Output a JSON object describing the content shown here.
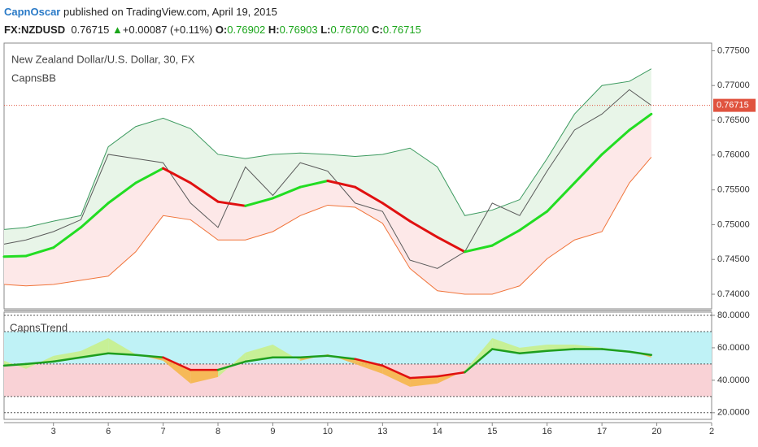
{
  "header": {
    "author": "CapnOscar",
    "published": "published on TradingView.com, April 19, 2015",
    "symbol": "FX:NZDUSD",
    "price": "0.76715",
    "arrow": "▲",
    "change": "+0.00087 (+0.11%)",
    "open_label": "O:",
    "open": "0.76902",
    "high_label": "H:",
    "high": "0.76903",
    "low_label": "L:",
    "low": "0.76700",
    "close_label": "C:",
    "close": "0.76715"
  },
  "chart_data": [
    {
      "type": "line",
      "title": "New Zealand Dollar/U.S. Dollar, 30, FX",
      "indicator": "CapnsBB",
      "x": [
        -0.9,
        -0.5,
        0,
        0.5,
        1,
        1.5,
        2,
        2.5,
        3,
        3.5,
        4,
        4.5,
        5,
        5.5,
        6,
        6.5,
        7,
        7.5,
        8,
        8.5,
        9,
        9.5,
        10,
        10.5,
        10.9
      ],
      "xlim": [
        -0.9,
        12
      ],
      "ylim": [
        0.7379,
        0.7761
      ],
      "yticks": [
        {
          "value": 0.74,
          "label": "0.74000"
        },
        {
          "value": 0.745,
          "label": "0.74500"
        },
        {
          "value": 0.75,
          "label": "0.75000"
        },
        {
          "value": 0.755,
          "label": "0.75500"
        },
        {
          "value": 0.76,
          "label": "0.76000"
        },
        {
          "value": 0.765,
          "label": "0.76500"
        },
        {
          "value": 0.77,
          "label": "0.77000"
        },
        {
          "value": 0.775,
          "label": "0.77500"
        }
      ],
      "upper_fill": "#e8f5e8",
      "lower_fill": "#fde8e8",
      "up_color": "#22dd22",
      "down_color": "#e01010",
      "series": [
        {
          "color": "#3c9a5f",
          "values": [
            0.7493,
            0.7496,
            0.7505,
            0.7513,
            0.7612,
            0.7641,
            0.7653,
            0.7638,
            0.7601,
            0.7595,
            0.7601,
            0.7603,
            0.7601,
            0.7598,
            0.7601,
            0.761,
            0.7583,
            0.7513,
            0.7521,
            0.7536,
            0.7595,
            0.7659,
            0.77,
            0.7706,
            0.7724
          ]
        },
        {
          "values": [
            0.7454,
            0.7455,
            0.7467,
            0.7496,
            0.7531,
            0.756,
            0.7581,
            0.756,
            0.7533,
            0.7527,
            0.7538,
            0.7554,
            0.7563,
            0.7554,
            0.7531,
            0.7505,
            0.7482,
            0.7461,
            0.747,
            0.7492,
            0.7519,
            0.756,
            0.7601,
            0.7636,
            0.7659
          ]
        },
        {
          "color": "#f0743a",
          "values": [
            0.7414,
            0.7412,
            0.7414,
            0.742,
            0.7426,
            0.7461,
            0.7513,
            0.7507,
            0.7478,
            0.7478,
            0.749,
            0.7513,
            0.7528,
            0.7525,
            0.7502,
            0.7437,
            0.7405,
            0.74,
            0.74,
            0.7412,
            0.7451,
            0.7478,
            0.749,
            0.756,
            0.7597
          ]
        },
        {
          "color": "#5a5a5a",
          "values": [
            0.7472,
            0.7478,
            0.749,
            0.7507,
            0.7601,
            0.7595,
            0.7589,
            0.7531,
            0.7496,
            0.7583,
            0.7542,
            0.7589,
            0.7577,
            0.7531,
            0.7519,
            0.7449,
            0.7437,
            0.7461,
            0.7531,
            0.7513,
            0.7577,
            0.7636,
            0.7659,
            0.7694,
            0.76715
          ]
        }
      ],
      "last": {
        "value": 0.76715,
        "label": "0.76715",
        "color": "#e0533f"
      }
    },
    {
      "type": "line",
      "indicator": "CapnsTrend",
      "x": [
        -0.9,
        -0.5,
        0,
        0.5,
        1,
        1.5,
        2,
        2.5,
        3,
        3.5,
        4,
        4.5,
        5,
        5.5,
        6,
        6.5,
        7,
        7.5,
        8,
        8.5,
        9,
        9.5,
        10,
        10.5,
        10.9
      ],
      "xlim": [
        -0.9,
        12
      ],
      "ylim": [
        15.9,
        82
      ],
      "yticks": [
        {
          "value": 20,
          "label": "20.0000"
        },
        {
          "value": 40,
          "label": "40.0000"
        },
        {
          "value": 60,
          "label": "60.0000"
        },
        {
          "value": 80,
          "label": "80.0000"
        }
      ],
      "xticks": [
        {
          "value": 0,
          "label": "3"
        },
        {
          "value": 1,
          "label": "6"
        },
        {
          "value": 2,
          "label": "7"
        },
        {
          "value": 3,
          "label": "8"
        },
        {
          "value": 4,
          "label": "9"
        },
        {
          "value": 5,
          "label": "10"
        },
        {
          "value": 6,
          "label": "13"
        },
        {
          "value": 7,
          "label": "14"
        },
        {
          "value": 8,
          "label": "15"
        },
        {
          "value": 9,
          "label": "16"
        },
        {
          "value": 10,
          "label": "17"
        },
        {
          "value": 11,
          "label": "20"
        },
        {
          "value": 12,
          "label": "2"
        }
      ],
      "zones": [
        {
          "from": 50,
          "to": 70,
          "color": "#bff2f6"
        },
        {
          "from": 30,
          "to": 50,
          "color": "#f9d2d6"
        }
      ],
      "levels": [
        80,
        70,
        50,
        30,
        20
      ],
      "mid_level": 50,
      "up_color": "#1e9e1e",
      "down_color": "#e01010",
      "above_fill": "#c8f08c",
      "below_fill": "#f5b64a",
      "series": [
        {
          "values": [
            49.0,
            50.0,
            51.5,
            54.1,
            56.6,
            55.6,
            54.1,
            46.4,
            46.4,
            51.5,
            54.1,
            54.1,
            55.1,
            53.1,
            49.0,
            41.4,
            42.4,
            44.9,
            59.2,
            56.6,
            58.1,
            59.2,
            59.2,
            57.6,
            55.6
          ]
        },
        {
          "values": [
            52,
            47,
            55,
            58,
            66,
            56,
            52,
            38,
            42,
            57,
            62,
            52,
            56,
            50,
            44,
            36,
            38,
            46,
            66,
            60,
            62,
            62,
            60,
            58,
            54
          ]
        }
      ]
    }
  ]
}
